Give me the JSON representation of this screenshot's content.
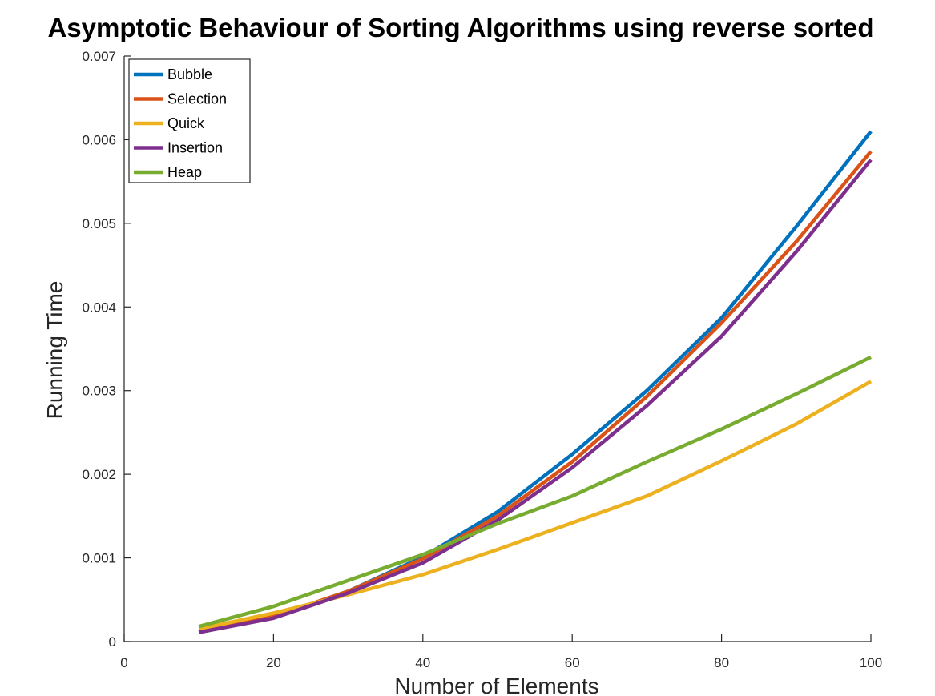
{
  "chart_data": {
    "type": "line",
    "title": "Asymptotic Behaviour of Sorting Algorithms using reverse sorted",
    "xlabel": "Number of Elements",
    "ylabel": "Running Time",
    "xlim": [
      0,
      100
    ],
    "ylim": [
      0,
      0.007
    ],
    "xticks": [
      0,
      20,
      40,
      60,
      80,
      100
    ],
    "xtick_labels": [
      "0",
      "20",
      "40",
      "60",
      "80",
      "100"
    ],
    "yticks": [
      0,
      0.001,
      0.002,
      0.003,
      0.004,
      0.005,
      0.006,
      0.007
    ],
    "ytick_labels": [
      "0",
      "0.001",
      "0.002",
      "0.003",
      "0.004",
      "0.005",
      "0.006",
      "0.007"
    ],
    "grid": false,
    "legend_position": "top-left",
    "x": [
      10,
      20,
      30,
      40,
      50,
      60,
      70,
      80,
      90,
      100
    ],
    "series": [
      {
        "name": "Bubble",
        "color": "#0072BD",
        "values": [
          0.00011,
          0.00029,
          0.0006,
          0.00101,
          0.00155,
          0.00224,
          0.003,
          0.00387,
          0.00496,
          0.0061
        ]
      },
      {
        "name": "Selection",
        "color": "#D95319",
        "values": [
          0.00012,
          0.0003,
          0.0006,
          0.00099,
          0.0015,
          0.00215,
          0.00293,
          0.00381,
          0.00478,
          0.00586
        ]
      },
      {
        "name": "Quick",
        "color": "#EDB120",
        "values": [
          0.00015,
          0.00034,
          0.00056,
          0.0008,
          0.0011,
          0.00142,
          0.00174,
          0.00216,
          0.0026,
          0.00311
        ]
      },
      {
        "name": "Insertion",
        "color": "#7E2F8E",
        "values": [
          0.00011,
          0.00028,
          0.00058,
          0.00094,
          0.00145,
          0.00208,
          0.00282,
          0.00365,
          0.00466,
          0.00576
        ]
      },
      {
        "name": "Heap",
        "color": "#77AC30",
        "values": [
          0.00018,
          0.00042,
          0.00073,
          0.00104,
          0.00141,
          0.00174,
          0.00215,
          0.00254,
          0.00296,
          0.0034
        ]
      }
    ]
  }
}
